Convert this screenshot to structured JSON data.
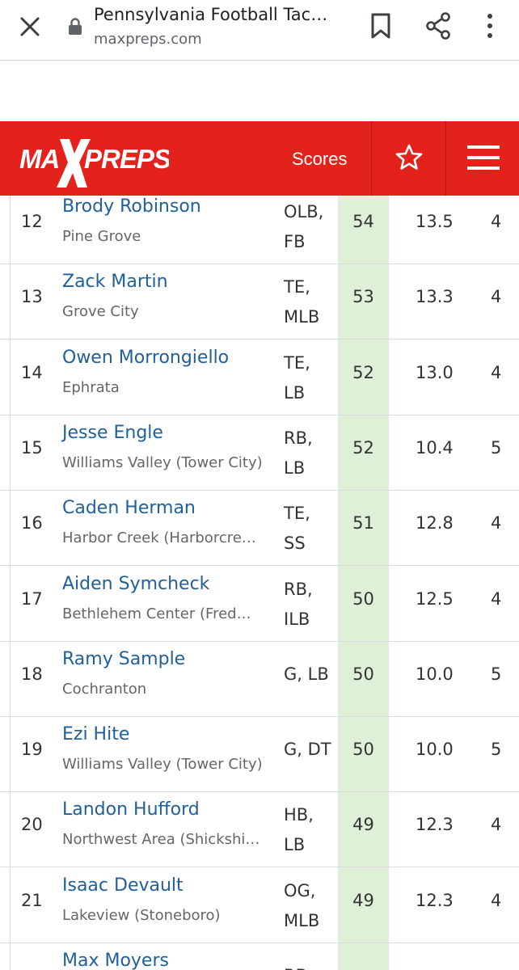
{
  "browser": {
    "title": "Pennsylvania Football Tac…",
    "url": "maxpreps.com"
  },
  "header": {
    "logo_text": "MAXPREPS",
    "scores_label": "Scores",
    "brand_color": "#e3221b"
  },
  "table": {
    "rows": [
      {
        "rank": "12",
        "name": "Brody Robinson",
        "school": "Pine Grove",
        "pos1": "OLB,",
        "pos2": "FB",
        "total": "54",
        "avg": "13.5",
        "gp": "4"
      },
      {
        "rank": "13",
        "name": "Zack Martin",
        "school": "Grove City",
        "pos1": "TE,",
        "pos2": "MLB",
        "total": "53",
        "avg": "13.3",
        "gp": "4"
      },
      {
        "rank": "14",
        "name": "Owen Morrongiello",
        "school": "Ephrata",
        "pos1": "TE,",
        "pos2": "LB",
        "total": "52",
        "avg": "13.0",
        "gp": "4"
      },
      {
        "rank": "15",
        "name": "Jesse Engle",
        "school": "Williams Valley (Tower City)",
        "pos1": "RB,",
        "pos2": "LB",
        "total": "52",
        "avg": "10.4",
        "gp": "5"
      },
      {
        "rank": "16",
        "name": "Caden Herman",
        "school": "Harbor Creek (Harborcre…",
        "pos1": "TE,",
        "pos2": "SS",
        "total": "51",
        "avg": "12.8",
        "gp": "4"
      },
      {
        "rank": "17",
        "name": "Aiden Symcheck",
        "school": "Bethlehem Center (Fred…",
        "pos1": "RB,",
        "pos2": "ILB",
        "total": "50",
        "avg": "12.5",
        "gp": "4"
      },
      {
        "rank": "18",
        "name": "Ramy Sample",
        "school": "Cochranton",
        "pos1": "G, LB",
        "pos2": "",
        "total": "50",
        "avg": "10.0",
        "gp": "5"
      },
      {
        "rank": "19",
        "name": "Ezi Hite",
        "school": "Williams Valley (Tower City)",
        "pos1": "G, DT",
        "pos2": "",
        "total": "50",
        "avg": "10.0",
        "gp": "5"
      },
      {
        "rank": "20",
        "name": "Landon Hufford",
        "school": "Northwest Area (Shickshi…",
        "pos1": "HB,",
        "pos2": "LB",
        "total": "49",
        "avg": "12.3",
        "gp": "4"
      },
      {
        "rank": "21",
        "name": "Isaac Devault",
        "school": "Lakeview (Stoneboro)",
        "pos1": "OG,",
        "pos2": "MLB",
        "total": "49",
        "avg": "12.3",
        "gp": "4"
      },
      {
        "rank": "",
        "name": "Max Moyers",
        "school": "",
        "pos1": "RB,",
        "pos2": "",
        "total": "",
        "avg": "",
        "gp": ""
      }
    ]
  }
}
